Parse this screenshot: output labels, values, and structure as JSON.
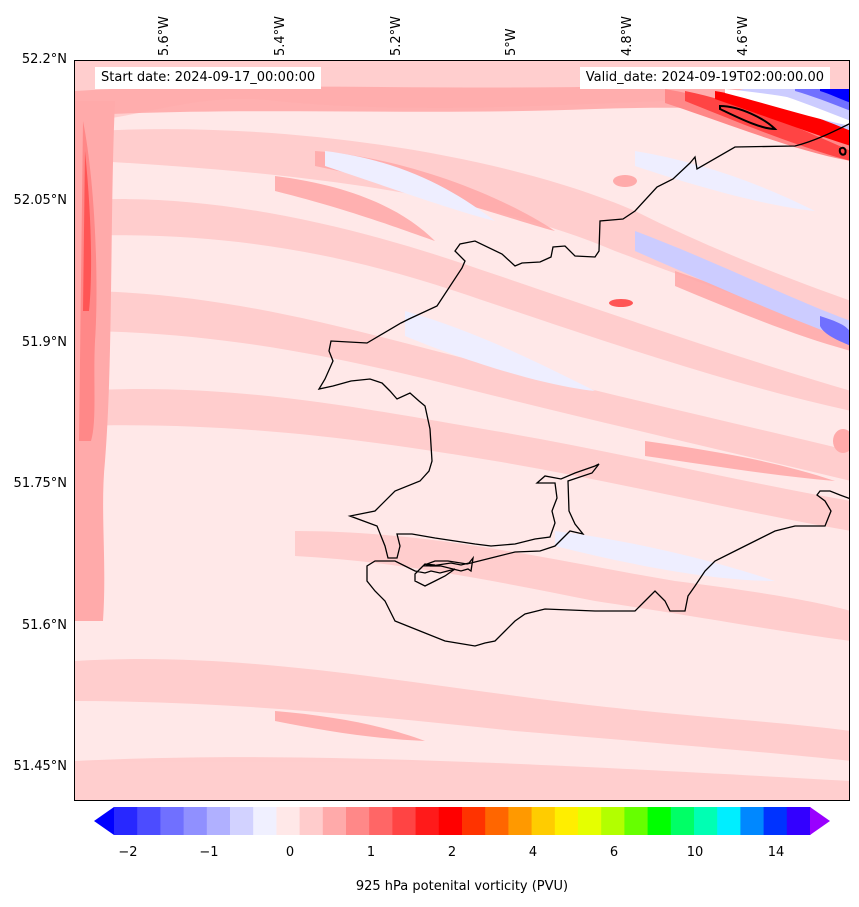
{
  "map": {
    "start_date": "Start date: 2024-09-17_00:00:00",
    "valid_date": "Valid_date: 2024-09-19T02:00:00.00",
    "lat_labels": [
      "52.2°N",
      "52.05°N",
      "51.9°N",
      "51.75°N",
      "51.6°N",
      "51.45°N"
    ],
    "lon_labels": [
      "5.6°W",
      "5.4°W",
      "5.2°W",
      "5°W",
      "4.8°W",
      "4.6°W"
    ],
    "colors": {
      "background_fill": "#ffe8e8",
      "light_pink": "#ffcccc",
      "mid_pink": "#ffaaaa",
      "red": "#ff5555",
      "deep_red": "#ff0000",
      "light_blue": "#eeeeff",
      "blue": "#ccccff",
      "deep_blue": "#0000ff",
      "coastline": "#000000"
    }
  },
  "colorbar": {
    "label": "925 hPa potenital vorticity (PVU)",
    "ticks": [
      "−2",
      "−1",
      "0",
      "1",
      "2",
      "4",
      "6",
      "10",
      "14"
    ],
    "colors": [
      "#0000ff",
      "#2828ff",
      "#4c4cff",
      "#7070ff",
      "#9090ff",
      "#b0b0ff",
      "#d2d2ff",
      "#f0f0ff",
      "#ffe8e8",
      "#ffcccc",
      "#ffaaaa",
      "#ff8888",
      "#ff6666",
      "#ff4444",
      "#ff1a1a",
      "#ff0000",
      "#ff3300",
      "#ff6600",
      "#ff9900",
      "#ffcc00",
      "#ffee00",
      "#e5ff00",
      "#b2ff00",
      "#66ff00",
      "#00ff00",
      "#00ff66",
      "#00ffb3",
      "#00eeff",
      "#0088ff",
      "#0033ff",
      "#3300ff",
      "#9900ff"
    ]
  }
}
